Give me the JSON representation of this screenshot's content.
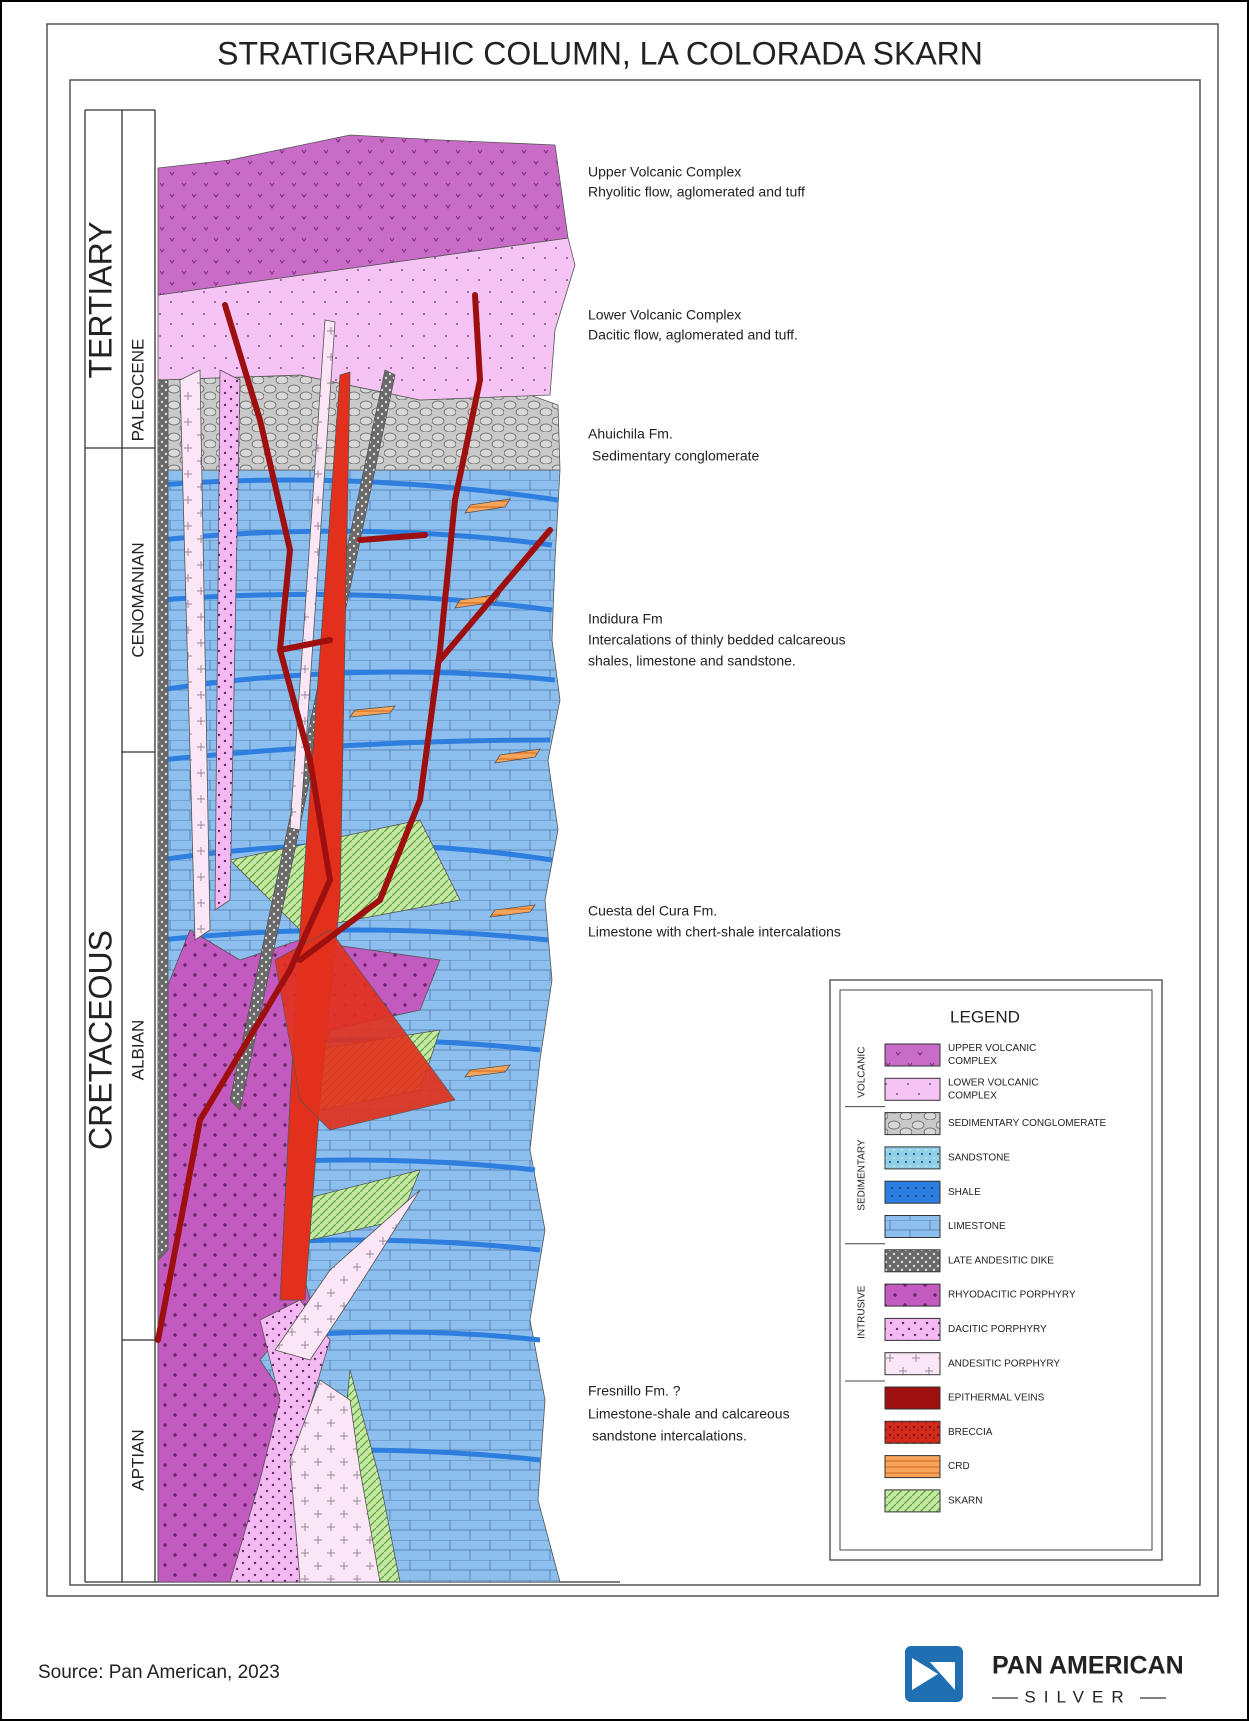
{
  "title": "STRATIGRAPHIC COLUMN, LA COLORADA SKARN",
  "time_scale": {
    "periods": [
      "TERTIARY",
      "CRETACEOUS"
    ],
    "stages": [
      "PALEOCENE",
      "CENOMANIAN",
      "ALBIAN",
      "APTIAN"
    ]
  },
  "formations": [
    {
      "name": "Upper Volcanic Complex",
      "description": [
        "Rhyolitic flow, aglomerated and tuff"
      ]
    },
    {
      "name": "Lower Volcanic Complex",
      "description": [
        "Dacitic flow, aglomerated and tuff."
      ]
    },
    {
      "name": "Ahuichila Fm.",
      "description": [
        "Sedimentary conglomerate"
      ]
    },
    {
      "name": "Indidura Fm",
      "description": [
        "Intercalations of thinly bedded calcareous",
        "shales, limestone and sandstone."
      ]
    },
    {
      "name": "Cuesta del Cura Fm.",
      "description": [
        "Limestone with chert-shale intercalations"
      ]
    },
    {
      "name": "Fresnillo Fm. ?",
      "description": [
        "Limestone-shale and calcareous",
        "sandstone intercalations."
      ]
    }
  ],
  "legend": {
    "title": "LEGEND",
    "groups": [
      {
        "name": "VOLCANIC",
        "items": [
          [
            "UPPER VOLCANIC",
            "COMPLEX"
          ],
          [
            "LOWER VOLCANIC",
            "COMPLEX"
          ]
        ]
      },
      {
        "name": "SEDIMENTARY",
        "items": [
          [
            "SEDIMENTARY CONGLOMERATE"
          ],
          [
            "SANDSTONE"
          ],
          [
            "SHALE"
          ],
          [
            "LIMESTONE"
          ]
        ]
      },
      {
        "name": "INTRUSIVE",
        "items": [
          [
            "LATE ANDESITIC DIKE"
          ],
          [
            "RHYODACITIC PORPHYRY"
          ],
          [
            "DACITIC PORPHYRY"
          ],
          [
            "ANDESITIC PORPHYRY"
          ]
        ]
      },
      {
        "name": null,
        "items": [
          [
            "EPITHERMAL VEINS"
          ],
          [
            "BRECCIA"
          ],
          [
            "CRD"
          ],
          [
            "SKARN"
          ]
        ]
      }
    ]
  },
  "footer": {
    "source": "Source: Pan American, 2023",
    "logo": {
      "name": "PAN AMERICAN",
      "tagline": "SILVER"
    }
  }
}
